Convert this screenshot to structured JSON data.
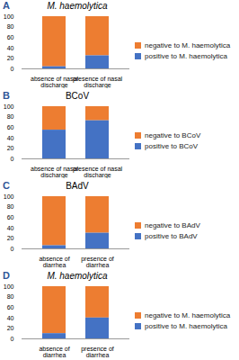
{
  "chart_data": [
    {
      "type": "bar",
      "panel": "A",
      "title": "M. haemolytica",
      "stacked": true,
      "legend": "right",
      "categories": [
        "absence of nasal discharge",
        "presence of nasal discharge"
      ],
      "series": [
        {
          "name": "negative to M. haemolytica",
          "color": "#ed7d31",
          "values": [
            96,
            75
          ]
        },
        {
          "name": "positive to M. haemolytica",
          "color": "#4472c4",
          "values": [
            4,
            25
          ]
        }
      ],
      "ylim": [
        0,
        100
      ],
      "yticks": [
        0,
        20,
        40,
        60,
        80,
        100
      ],
      "grid": false
    },
    {
      "type": "bar",
      "panel": "B",
      "title": "BCoV",
      "stacked": true,
      "legend": "right",
      "categories": [
        "absence of nasal discharge",
        "presence of nasal discharge"
      ],
      "series": [
        {
          "name": "negative to BCoV",
          "color": "#ed7d31",
          "values": [
            45,
            27
          ]
        },
        {
          "name": "positive to BCoV",
          "color": "#4472c4",
          "values": [
            55,
            73
          ]
        }
      ],
      "ylim": [
        0,
        100
      ],
      "yticks": [
        0,
        20,
        40,
        60,
        80,
        100
      ],
      "grid": false
    },
    {
      "type": "bar",
      "panel": "C",
      "title": "BAdV",
      "stacked": true,
      "legend": "right",
      "categories": [
        "absence of diarrhea",
        "presence of diarrhea"
      ],
      "series": [
        {
          "name": "negative to BAdV",
          "color": "#ed7d31",
          "values": [
            94,
            70
          ]
        },
        {
          "name": "positive to BAdV",
          "color": "#4472c4",
          "values": [
            6,
            30
          ]
        }
      ],
      "ylim": [
        0,
        100
      ],
      "yticks": [
        0,
        20,
        40,
        60,
        80,
        100
      ],
      "grid": false
    },
    {
      "type": "bar",
      "panel": "D",
      "title": "M. haemolytica",
      "stacked": true,
      "legend": "right",
      "categories": [
        "absence of diarrhea",
        "presence of diarrhea"
      ],
      "series": [
        {
          "name": "negative to M. haemolytica",
          "color": "#ed7d31",
          "values": [
            90,
            60
          ]
        },
        {
          "name": "positive to M. haemolytica",
          "color": "#4472c4",
          "values": [
            10,
            40
          ]
        }
      ],
      "ylim": [
        0,
        100
      ],
      "yticks": [
        0,
        20,
        40,
        60,
        80,
        100
      ],
      "grid": false
    }
  ]
}
